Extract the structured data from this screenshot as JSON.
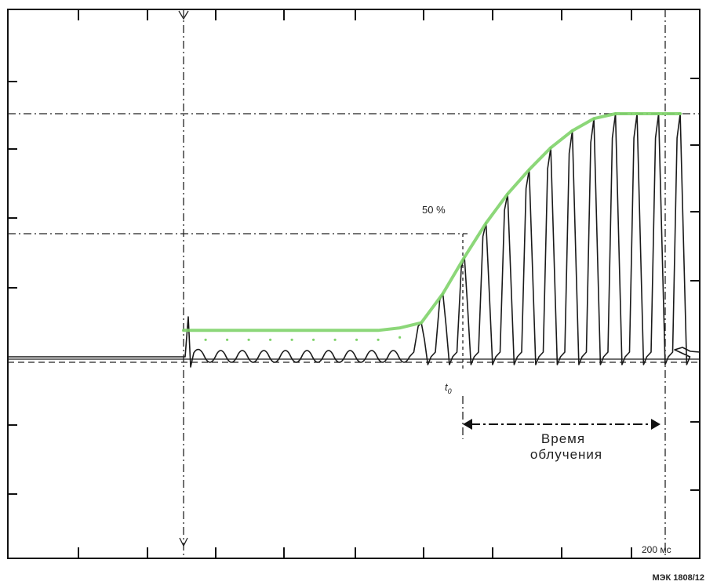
{
  "chart_data": {
    "type": "line",
    "title": "",
    "xlabel": "",
    "ylabel": "",
    "x_unit_label": "200 мс",
    "grid": false,
    "annotations": {
      "percent_label": "50 %",
      "t0_label": "t",
      "t0_subscript": "0",
      "duration_label_line1": "Время",
      "duration_label_line2": "облучения"
    },
    "figure_id": "МЭК 1808/12",
    "envelope_color": "#7fd36a",
    "trace_color": "#1a1a1a",
    "series": [
      {
        "name": "",
        "values": [
          0.07,
          0.07,
          0.07,
          0.07,
          0.07,
          0.07,
          0.07,
          0.07,
          0.07,
          0.08,
          0.14,
          0.26,
          0.41,
          0.55,
          0.67,
          0.77,
          0.86,
          0.93,
          0.98,
          1.0,
          1.0,
          1.0,
          1.0
        ]
      }
    ]
  }
}
